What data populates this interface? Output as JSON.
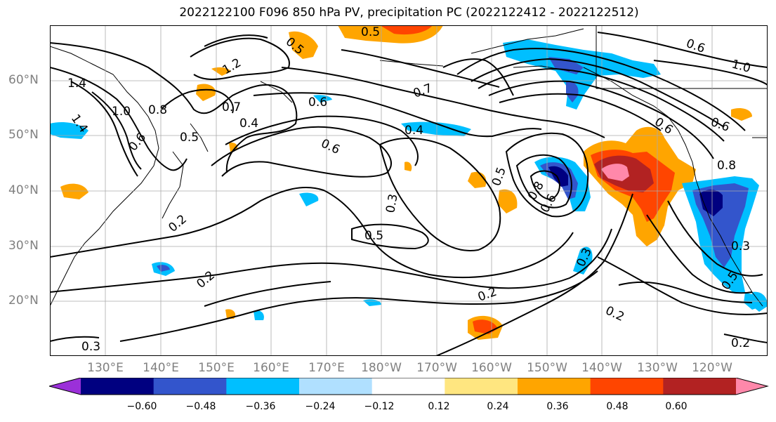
{
  "title": "2022122100 F096 850 hPa PV, precipitation PC (2022122412 - 2022122512)",
  "lat_labels": [
    "60°N",
    "50°N",
    "40°N",
    "30°N",
    "20°N"
  ],
  "lon_labels": [
    "130°E",
    "140°E",
    "150°E",
    "160°E",
    "170°E",
    "180°W",
    "170°W",
    "160°W",
    "150°W",
    "140°W",
    "130°W",
    "120°W"
  ],
  "contour_labels": [
    "1.4",
    "1.4",
    "1.0",
    "0.8",
    "0.6",
    "0.5",
    "0.5",
    "0.7",
    "0.4",
    "1.2",
    "0.6",
    "0.6",
    "0.5",
    "0.3",
    "0.5",
    "0.7",
    "0.4",
    "0.8",
    "0.6",
    "0.5",
    "0.2",
    "0.2",
    "0.3",
    "0.3",
    "0.2",
    "0.2",
    "0.2",
    "0.5",
    "0.6",
    "1.0",
    "0.6",
    "0.8",
    "0.6",
    "0.3"
  ],
  "colorbar": {
    "colors": [
      "#9b30d9",
      "#000080",
      "#3355cc",
      "#00bfff",
      "#b0e0ff",
      "#ffffff",
      "#ffe680",
      "#ffa500",
      "#ff4500",
      "#b22222",
      "#ff88aa"
    ],
    "tick_labels": [
      "−0.60",
      "−0.48",
      "−0.36",
      "−0.24",
      "−0.12",
      "0.12",
      "0.24",
      "0.36",
      "0.48",
      "0.60"
    ]
  },
  "colors": {
    "contour": "#000000",
    "grid": "#aaaaaa",
    "coast": "#000000",
    "axis_label": "#808080"
  }
}
